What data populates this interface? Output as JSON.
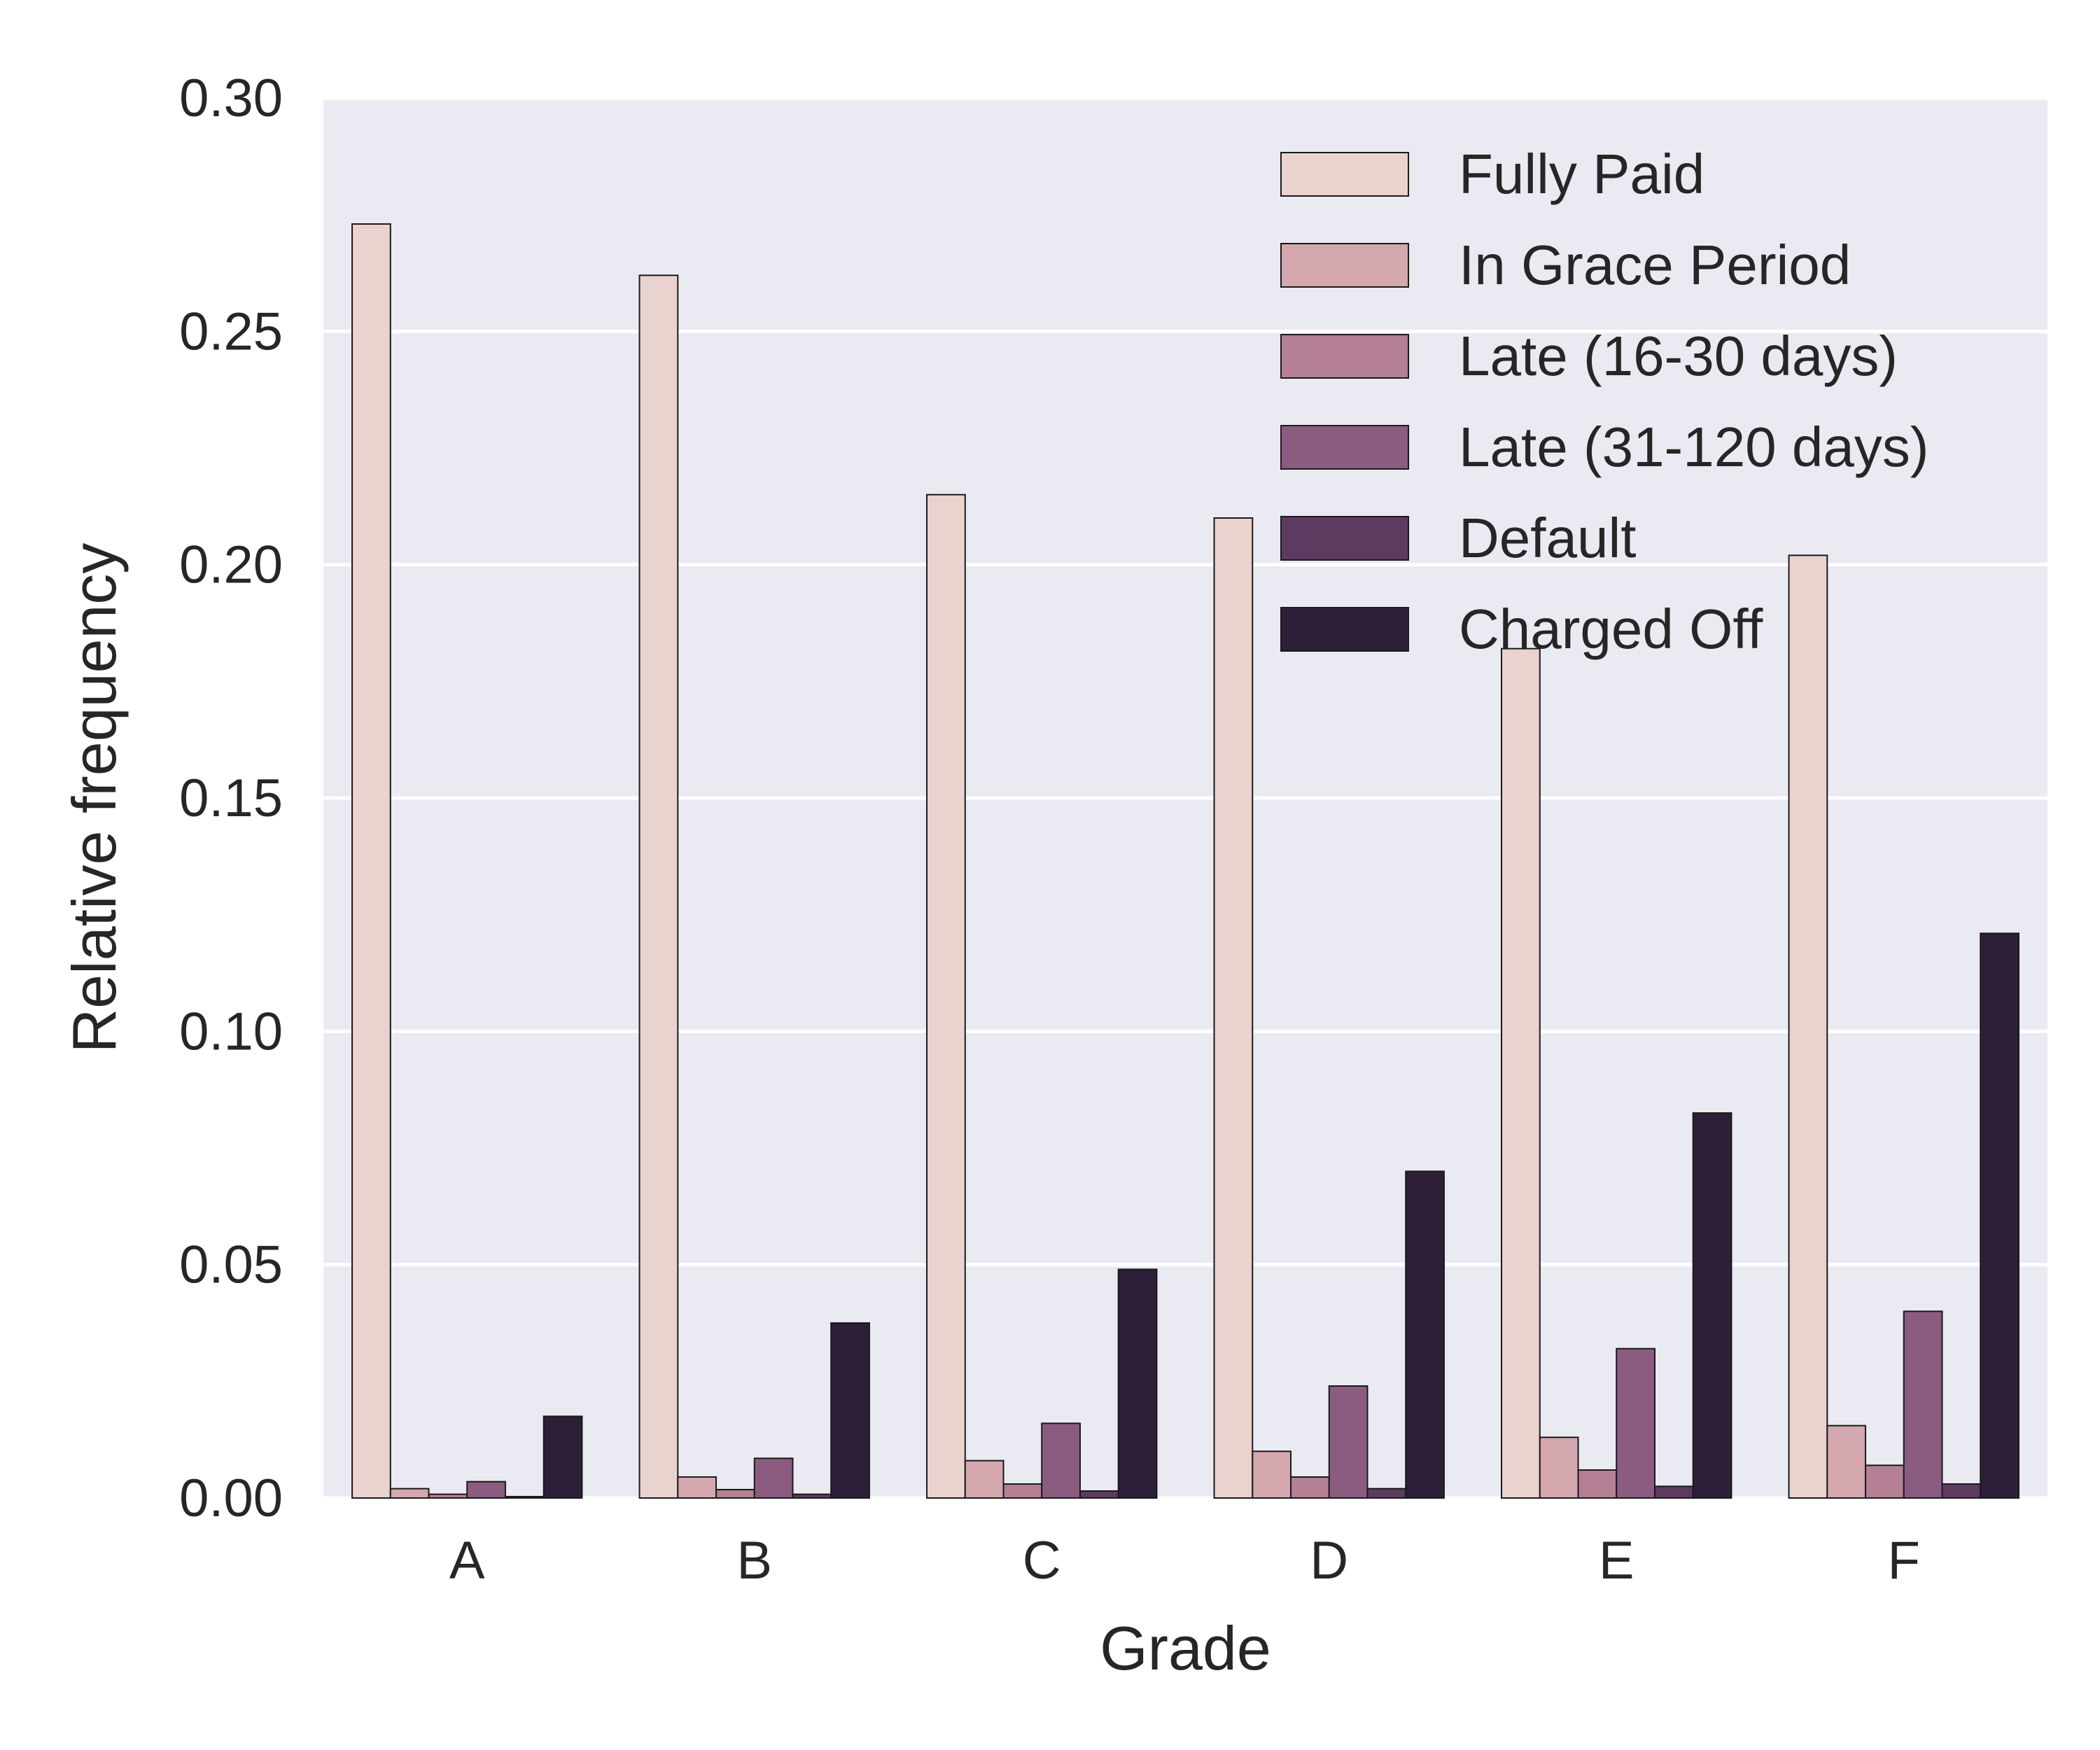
{
  "chart_data": {
    "type": "bar",
    "xlabel": "Grade",
    "ylabel": "Relative frequency",
    "categories": [
      "A",
      "B",
      "C",
      "D",
      "E",
      "F"
    ],
    "ylim": [
      0,
      0.3
    ],
    "yticks": [
      "0.00",
      "0.05",
      "0.10",
      "0.15",
      "0.20",
      "0.25",
      "0.30"
    ],
    "grid": true,
    "legend_position": "top-right",
    "series": [
      {
        "name": "Fully Paid",
        "color": "#ead3cf",
        "values": [
          0.273,
          0.262,
          0.215,
          0.21,
          0.182,
          0.202
        ]
      },
      {
        "name": "In Grace Period",
        "color": "#d4a8ae",
        "values": [
          0.002,
          0.0045,
          0.008,
          0.01,
          0.013,
          0.0155
        ]
      },
      {
        "name": "Late (16-30 days)",
        "color": "#b57f95",
        "values": [
          0.0008,
          0.0018,
          0.003,
          0.0045,
          0.006,
          0.007
        ]
      },
      {
        "name": "Late (31-120 days)",
        "color": "#8c5c80",
        "values": [
          0.0035,
          0.0085,
          0.016,
          0.024,
          0.032,
          0.04
        ]
      },
      {
        "name": "Default",
        "color": "#5d3a60",
        "values": [
          0.0003,
          0.0008,
          0.0015,
          0.002,
          0.0025,
          0.003
        ]
      },
      {
        "name": "Charged Off",
        "color": "#2e1f38",
        "values": [
          0.0175,
          0.0375,
          0.049,
          0.07,
          0.0825,
          0.121
        ]
      }
    ],
    "colors": {
      "plot_background": "#eaeaf2",
      "grid": "#ffffff",
      "bar_edge": "#1a1a1a",
      "text": "#262626"
    }
  }
}
